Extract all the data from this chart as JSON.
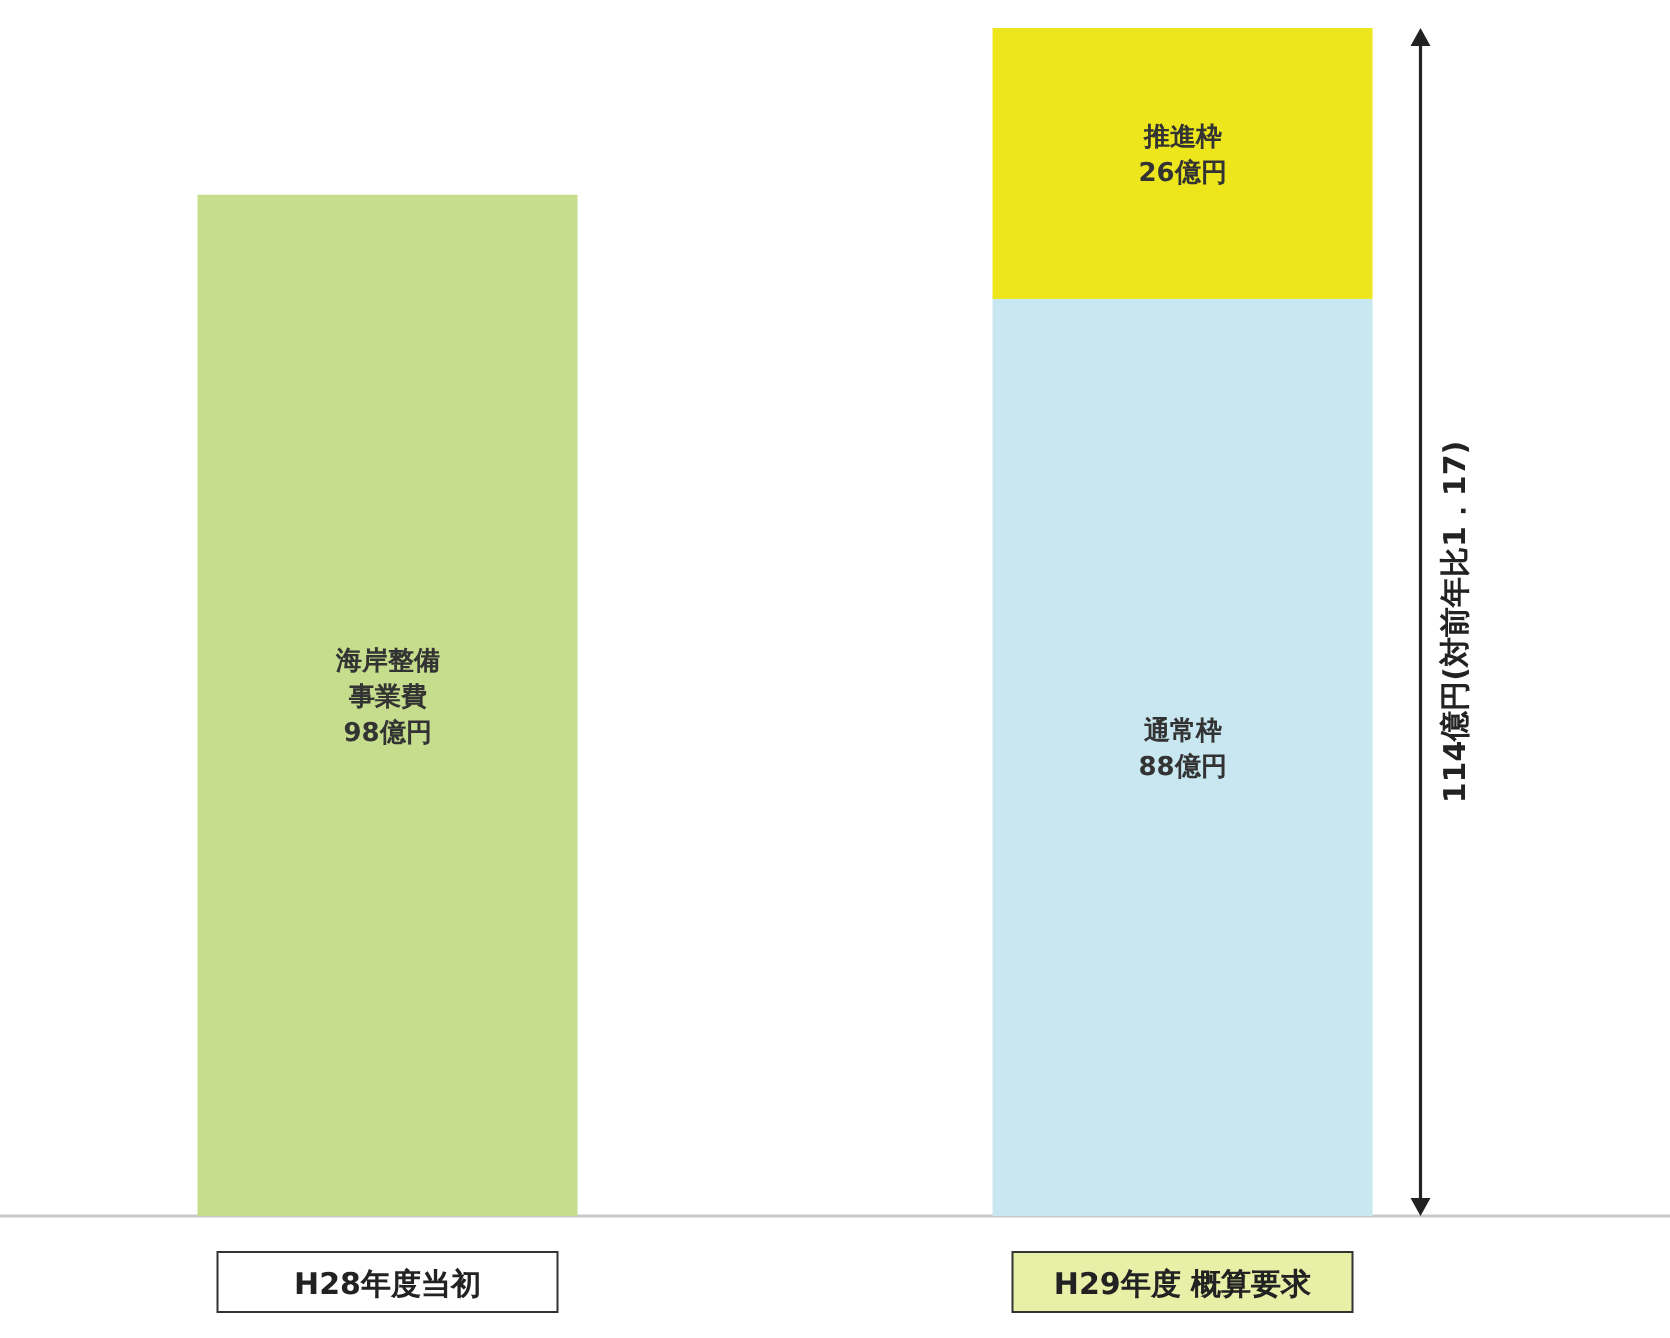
{
  "chart_data": {
    "type": "bar",
    "stacked": true,
    "categories": [
      "H28年度当初",
      "H29年度 概算要求"
    ],
    "series": [
      {
        "name": "海岸整備事業費",
        "color": "#c6dd8e",
        "values": [
          98,
          null
        ],
        "value_labels": [
          "98億円",
          null
        ]
      },
      {
        "name": "通常枠",
        "color": "#c9e7f1",
        "values": [
          null,
          88
        ],
        "value_labels": [
          null,
          "88億円"
        ]
      },
      {
        "name": "推進枠",
        "color": "#ede61d",
        "values": [
          null,
          26
        ],
        "value_labels": [
          null,
          "26億円"
        ]
      }
    ],
    "totals": [
      null,
      "114億円(対前年比1．17)"
    ]
  }
}
